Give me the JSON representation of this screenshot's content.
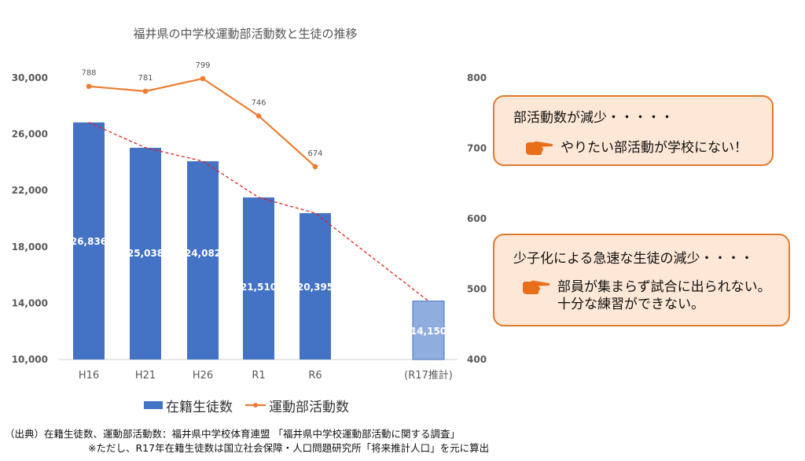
{
  "chart_data": {
    "type": "bar+line",
    "title": "福井県の中学校運動部活動数と生徒の推移",
    "categories": [
      "H16",
      "H21",
      "H26",
      "R1",
      "R6",
      "(R17推計)"
    ],
    "series": [
      {
        "name": "在籍生徒数",
        "kind": "bar",
        "axis": "left",
        "values": [
          26836,
          25038,
          24082,
          21510,
          20395,
          14150
        ],
        "labels": [
          "26,836",
          "25,038",
          "24,082",
          "21,510",
          "20,395",
          "14,150"
        ],
        "projected_index": 5
      },
      {
        "name": "運動部活動数",
        "kind": "line",
        "axis": "right",
        "values": [
          788,
          781,
          799,
          746,
          674,
          null
        ],
        "labels": [
          "788",
          "781",
          "799",
          "746",
          "674",
          ""
        ]
      }
    ],
    "trend_line": {
      "style": "dashed",
      "from_index": 0,
      "to_index": 5
    },
    "y_left": {
      "min": 10000,
      "max": 30000,
      "ticks": [
        10000,
        14000,
        18000,
        22000,
        26000,
        30000
      ],
      "tick_labels": [
        "10,000",
        "14,000",
        "18,000",
        "22,000",
        "26,000",
        "30,000"
      ]
    },
    "y_right": {
      "min": 400,
      "max": 800,
      "ticks": [
        400,
        500,
        600,
        700,
        800
      ],
      "tick_labels": [
        "400",
        "500",
        "600",
        "700",
        "800"
      ]
    },
    "legend": {
      "placement": "bottom",
      "items": [
        "在籍生徒数",
        "運動部活動数"
      ]
    },
    "grid": false,
    "colors": {
      "bar": "#4472c4",
      "bar_projected": "#8fadde",
      "line": "#ed7d31",
      "trend": "#e02020"
    }
  },
  "callouts": [
    {
      "title": "部活動数が減少・・・・・",
      "lines": [
        "やりたい部活動が学校にない！"
      ],
      "icon": "pointing-hand-icon"
    },
    {
      "title": "少子化による急速な生徒の減少・・・・",
      "lines": [
        "部員が集まらず試合に出られない。",
        "十分な練習ができない。"
      ],
      "icon": "pointing-hand-icon"
    }
  ],
  "source": {
    "line1": "（出典）在籍生徒数、運動部活動数：福井県中学校体育連盟 「福井県中学校運動部活動に関する調査」",
    "line2": "※ただし、R17年在籍生徒数は国立社会保障・人口問題研究所「将来推計人口」を元に算出"
  },
  "colors": {
    "callout_border": "#e07a2e",
    "callout_fill": "#fde7d6",
    "hand": "#e86e1a"
  }
}
